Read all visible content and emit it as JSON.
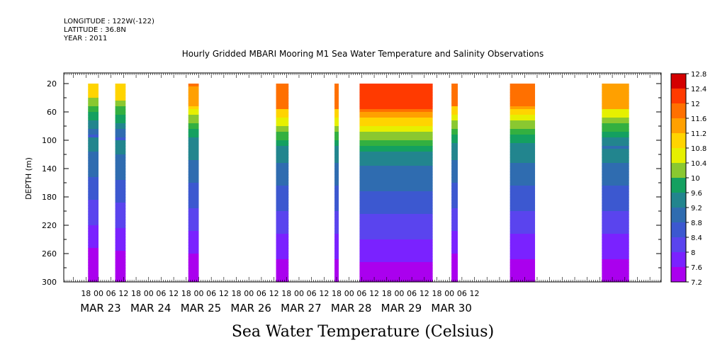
{
  "header": {
    "longitude": "LONGITUDE : 122W(-122)",
    "latitude": "LATITUDE : 36.8N",
    "year": "YEAR : 2011"
  },
  "chart_data": {
    "type": "heatmap",
    "title": "Hourly Gridded MBARI Mooring M1 Sea Water Temperature and Salinity Observations",
    "xlabel": "",
    "ylabel": "DEPTH (m)",
    "colorbar_label": "Sea Water Temperature (Celsius)",
    "y_ticks": [
      20,
      60,
      100,
      140,
      180,
      220,
      260,
      300
    ],
    "ylim": [
      300,
      5
    ],
    "x_hour_ticks": [
      "18",
      "00",
      "06",
      "12",
      "18",
      "00",
      "06",
      "12",
      "18",
      "00",
      "06",
      "12",
      "18",
      "00",
      "06",
      "12",
      "18",
      "00",
      "06",
      "12",
      "18",
      "00",
      "06",
      "12",
      "18",
      "00",
      "06",
      "12",
      "18",
      "00",
      "06",
      "12"
    ],
    "x_day_labels": [
      "MAR 23",
      "MAR 24",
      "MAR 25",
      "MAR 26",
      "MAR 27",
      "MAR 28",
      "MAR 29",
      "MAR 30"
    ],
    "colorbar_ticks": [
      "12.8",
      "12.4",
      "12",
      "11.6",
      "11.2",
      "10.8",
      "10.4",
      "10",
      "9.6",
      "9.2",
      "8.8",
      "8.4",
      "8",
      "7.6",
      "7.2"
    ],
    "color_levels": [
      7.2,
      12.8
    ],
    "data_segments": [
      {
        "start_hour": -5,
        "end_hour": 0,
        "surface_temp": 11.2,
        "thermocline_depth": 55
      },
      {
        "start_hour": 8,
        "end_hour": 13,
        "surface_temp": 11.1,
        "thermocline_depth": 60
      },
      {
        "start_hour": 43,
        "end_hour": 48,
        "surface_temp": 11.7,
        "thermocline_depth": 65
      },
      {
        "start_hour": 85,
        "end_hour": 91,
        "surface_temp": 12.0,
        "thermocline_depth": 70
      },
      {
        "start_hour": 113,
        "end_hour": 115,
        "surface_temp": 12.0,
        "thermocline_depth": 70
      },
      {
        "start_hour": 125,
        "end_hour": 160,
        "surface_temp": 12.2,
        "thermocline_depth": 75
      },
      {
        "start_hour": 169,
        "end_hour": 172,
        "surface_temp": 12.0,
        "thermocline_depth": 65
      },
      {
        "start_hour": 197,
        "end_hour": 209,
        "surface_temp": 11.8,
        "thermocline_depth": 70
      },
      {
        "start_hour": 241,
        "end_hour": 254,
        "surface_temp": 11.6,
        "thermocline_depth": 70
      }
    ]
  }
}
